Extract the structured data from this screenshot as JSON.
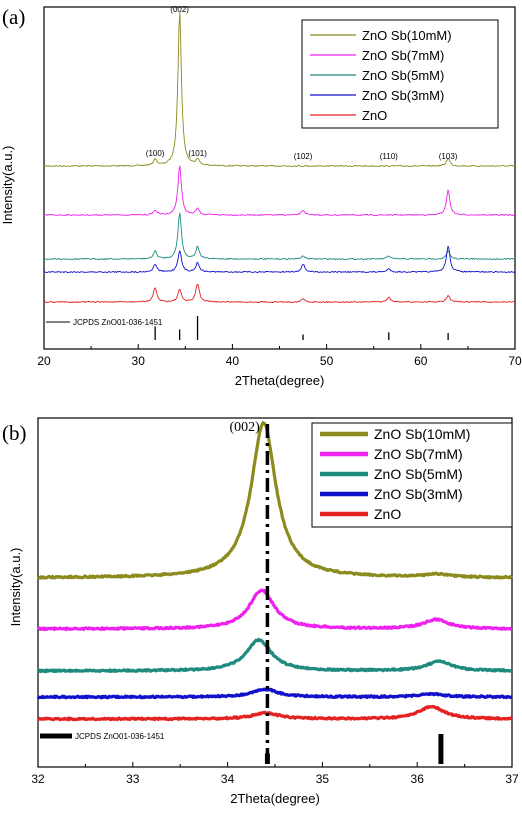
{
  "chart_data": [
    {
      "panel": "(a)",
      "type": "line",
      "xlabel": "2Theta(degree)",
      "ylabel": "Intensity(a.u.)",
      "xlim": [
        20,
        70
      ],
      "xticks": [
        20,
        30,
        40,
        50,
        60,
        70
      ],
      "peak_labels": [
        {
          "text": "(100)",
          "x": 31.8
        },
        {
          "text": "(002)",
          "x": 34.4
        },
        {
          "text": "(101)",
          "x": 36.3
        },
        {
          "text": "(102)",
          "x": 47.5
        },
        {
          "text": "(110)",
          "x": 56.6
        },
        {
          "text": "(103)",
          "x": 62.9
        }
      ],
      "reference": {
        "label": "JCPDS ZnO01-036-1451",
        "positions": [
          31.8,
          34.4,
          36.3,
          47.5,
          56.6,
          62.9
        ],
        "heights": [
          0.57,
          0.44,
          1.0,
          0.23,
          0.32,
          0.29
        ]
      },
      "series": [
        {
          "name": "ZnO Sb(10mM)",
          "color": "#8b8b1e",
          "offset": 4,
          "peaks": [
            {
              "x": 31.8,
              "h": 0.04
            },
            {
              "x": 34.4,
              "h": 1.0
            },
            {
              "x": 36.3,
              "h": 0.04
            },
            {
              "x": 62.9,
              "h": 0.05
            }
          ]
        },
        {
          "name": "ZnO Sb(7mM)",
          "color": "#ee22ee",
          "offset": 3,
          "peaks": [
            {
              "x": 31.8,
              "h": 0.03
            },
            {
              "x": 34.4,
              "h": 0.32
            },
            {
              "x": 36.3,
              "h": 0.04
            },
            {
              "x": 47.5,
              "h": 0.03
            },
            {
              "x": 62.9,
              "h": 0.16
            }
          ]
        },
        {
          "name": "ZnO Sb(5mM)",
          "color": "#1f8a7f",
          "offset": 2,
          "peaks": [
            {
              "x": 31.8,
              "h": 0.05
            },
            {
              "x": 34.4,
              "h": 0.3
            },
            {
              "x": 36.3,
              "h": 0.08
            },
            {
              "x": 47.5,
              "h": 0.02
            },
            {
              "x": 56.6,
              "h": 0.02
            },
            {
              "x": 62.9,
              "h": 0.05
            }
          ]
        },
        {
          "name": "ZnO Sb(3mM)",
          "color": "#1111cc",
          "offset": 1,
          "peaks": [
            {
              "x": 31.8,
              "h": 0.05
            },
            {
              "x": 34.4,
              "h": 0.14
            },
            {
              "x": 36.3,
              "h": 0.06
            },
            {
              "x": 47.5,
              "h": 0.05
            },
            {
              "x": 56.6,
              "h": 0.02
            },
            {
              "x": 62.9,
              "h": 0.17
            }
          ]
        },
        {
          "name": "ZnO",
          "color": "#e52222",
          "offset": 0,
          "peaks": [
            {
              "x": 31.8,
              "h": 0.09
            },
            {
              "x": 34.4,
              "h": 0.08
            },
            {
              "x": 36.3,
              "h": 0.12
            },
            {
              "x": 47.5,
              "h": 0.02
            },
            {
              "x": 56.6,
              "h": 0.03
            },
            {
              "x": 62.9,
              "h": 0.04
            }
          ]
        }
      ]
    },
    {
      "panel": "(b)",
      "type": "line",
      "xlabel": "2Theta(degree)",
      "ylabel": "Intensity(a.u.)",
      "xlim": [
        32,
        37
      ],
      "xticks": [
        32,
        33,
        34,
        35,
        36,
        37
      ],
      "peak_label": {
        "text": "(002)",
        "x": 34.18
      },
      "dashdot_line_x": 34.42,
      "reference": {
        "label": "JCPDS ZnO01-036-1451",
        "positions": [
          34.42,
          36.25
        ],
        "heights": [
          0.35,
          1.0
        ]
      },
      "series": [
        {
          "name": "ZnO Sb(10mM)",
          "color": "#8b8b1e",
          "offset": 4,
          "peaks": [
            {
              "x": 34.38,
              "h": 1.0
            },
            {
              "x": 36.2,
              "h": 0.02
            }
          ]
        },
        {
          "name": "ZnO Sb(7mM)",
          "color": "#ee22ee",
          "offset": 3,
          "peaks": [
            {
              "x": 34.36,
              "h": 0.25
            },
            {
              "x": 36.2,
              "h": 0.06
            }
          ]
        },
        {
          "name": "ZnO Sb(5mM)",
          "color": "#1f8a7f",
          "offset": 2,
          "peaks": [
            {
              "x": 34.33,
              "h": 0.2
            },
            {
              "x": 36.23,
              "h": 0.06
            }
          ]
        },
        {
          "name": "ZnO Sb(3mM)",
          "color": "#1111cc",
          "offset": 1,
          "peaks": [
            {
              "x": 34.4,
              "h": 0.05
            },
            {
              "x": 36.15,
              "h": 0.02
            }
          ]
        },
        {
          "name": "ZnO",
          "color": "#e52222",
          "offset": 0,
          "peaks": [
            {
              "x": 34.4,
              "h": 0.04
            },
            {
              "x": 36.15,
              "h": 0.08
            }
          ]
        }
      ]
    }
  ]
}
